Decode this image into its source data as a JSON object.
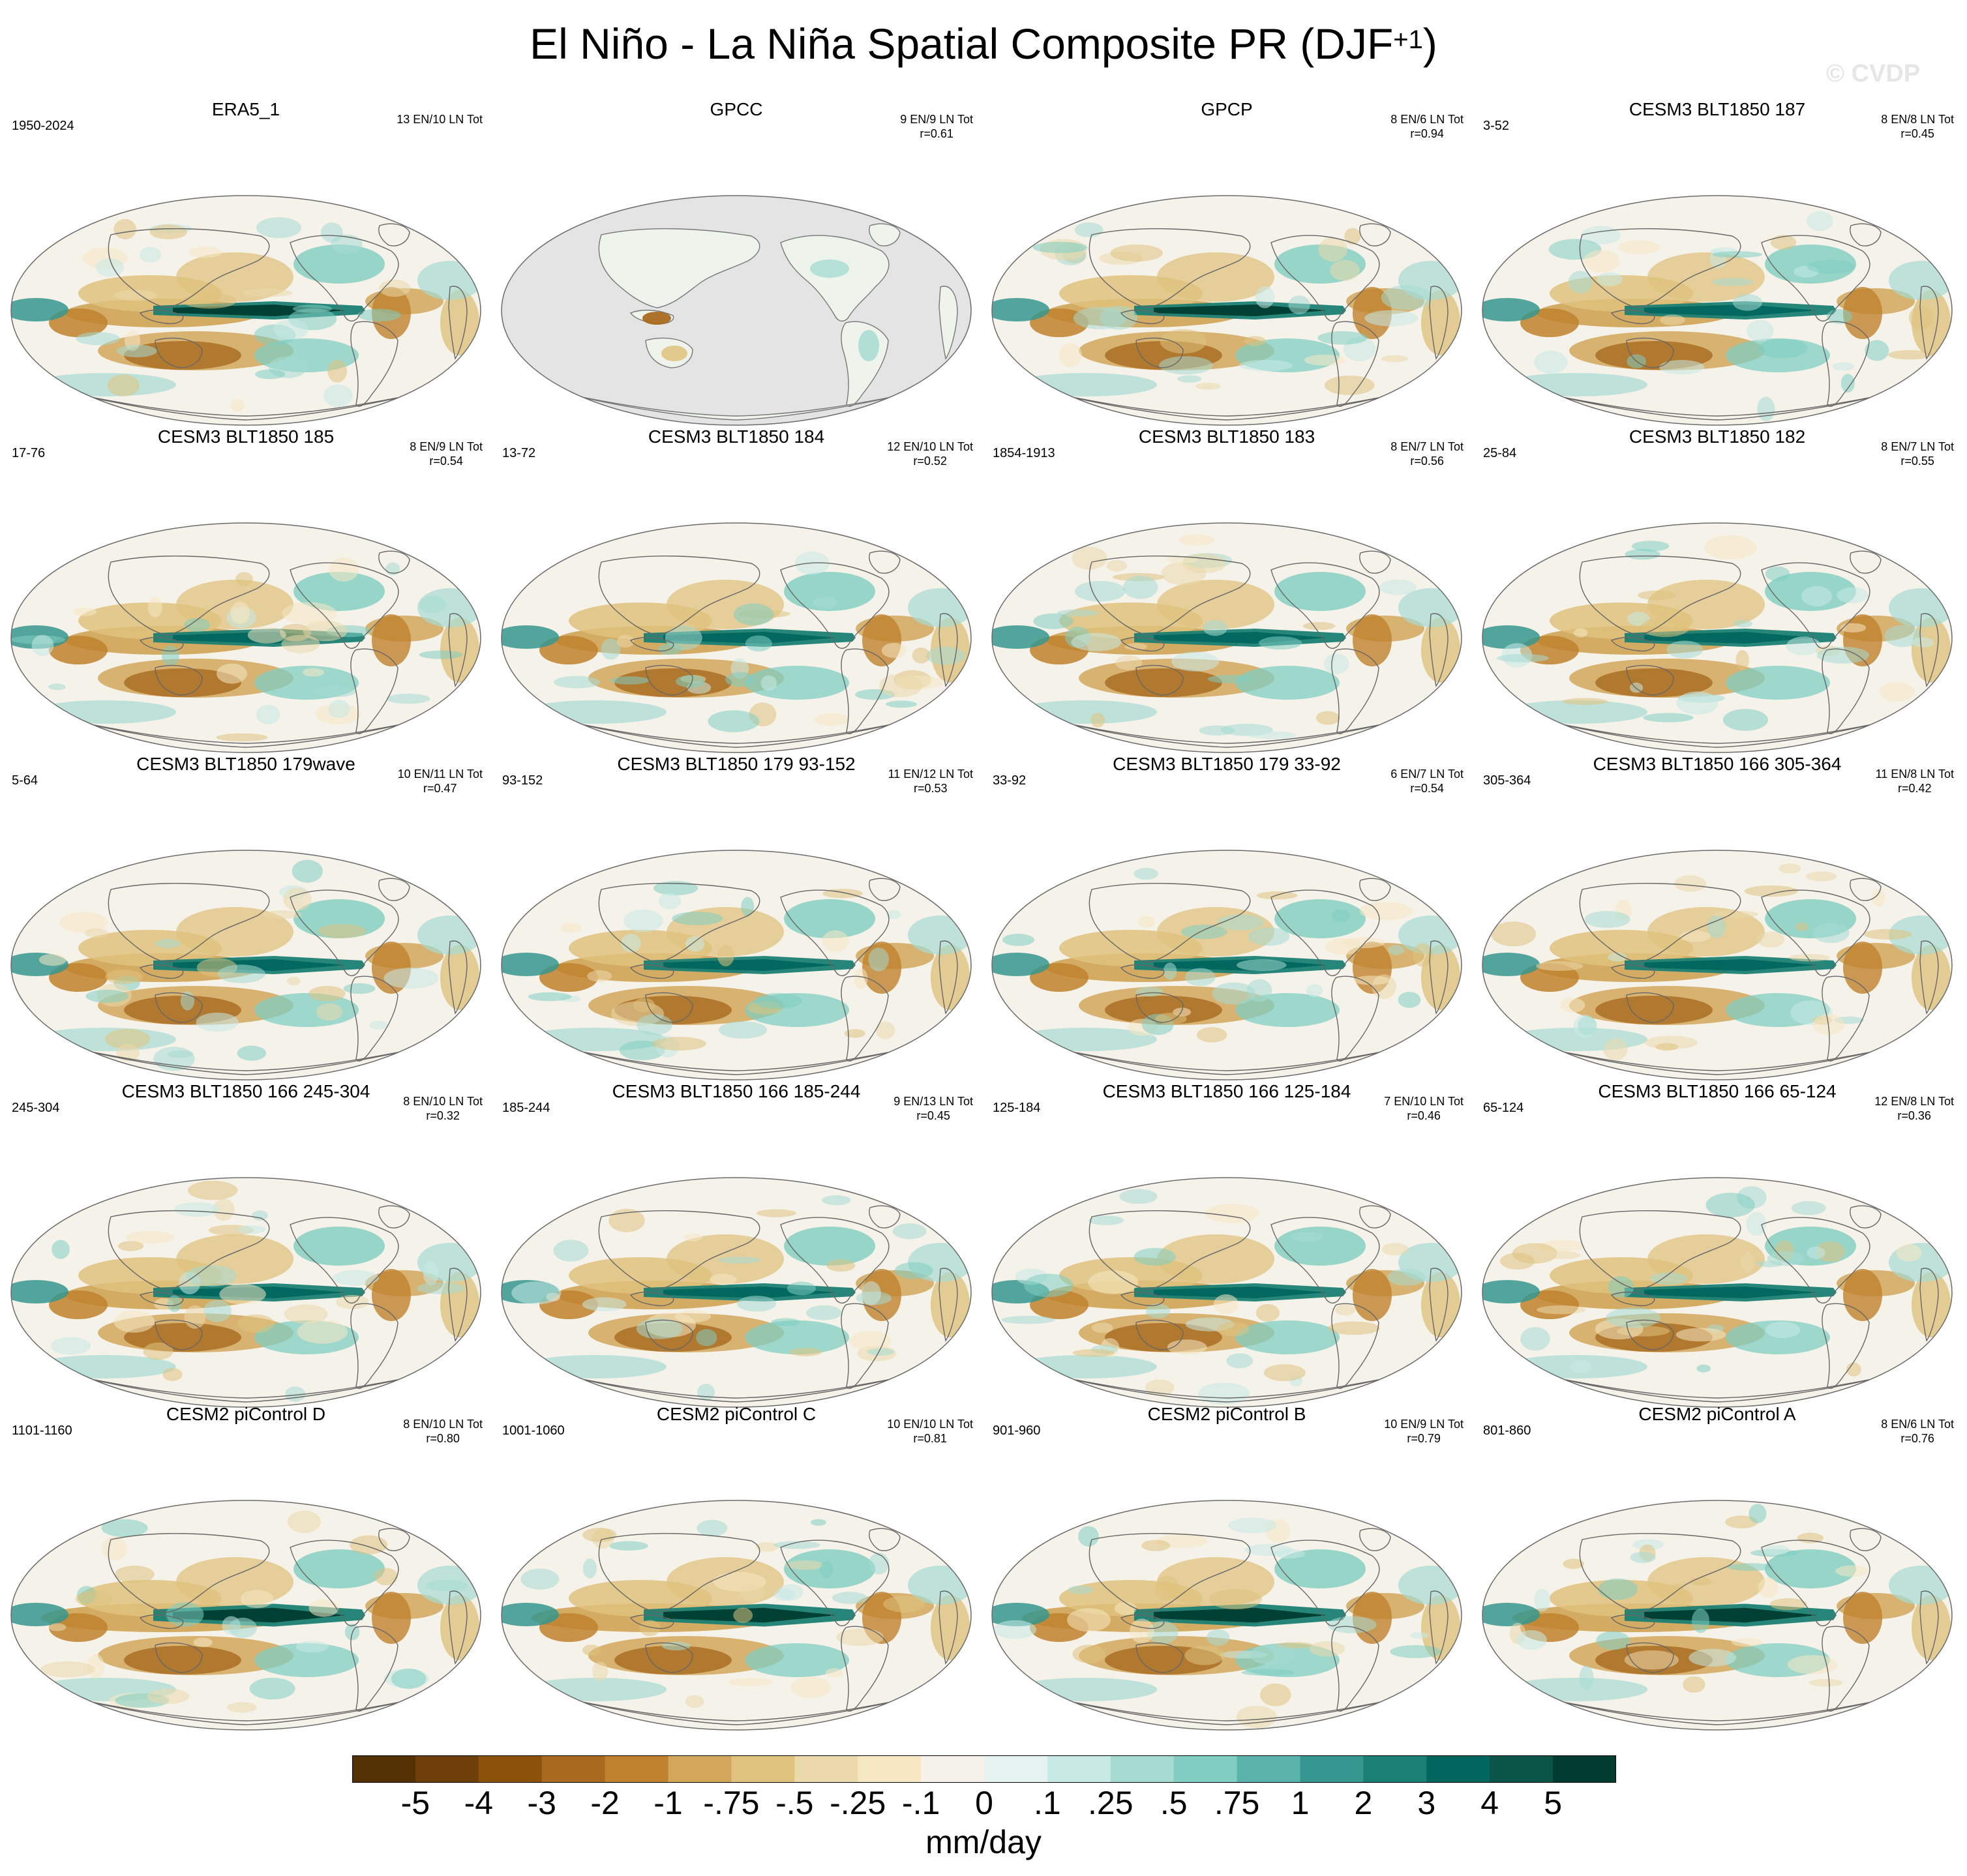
{
  "header": {
    "title": "El Niño - La Niña Spatial Composite PR (DJF",
    "title_sup": "+1",
    "title_close": ")",
    "watermark": "© CVDP"
  },
  "colorbar": {
    "colors": [
      "#543005",
      "#6f3f0a",
      "#8c510a",
      "#a86a1f",
      "#bf812d",
      "#d2a75c",
      "#dfc27d",
      "#ebd9ab",
      "#f6e8c3",
      "#f5f2ea",
      "#e6f3f1",
      "#c7eae5",
      "#a6dbd2",
      "#80cdc1",
      "#5ab4ac",
      "#35978f",
      "#1a7f74",
      "#01665e",
      "#0b5548",
      "#003c30"
    ],
    "tick_labels": [
      "-5",
      "-4",
      "-3",
      "-2",
      "-1",
      "-.75",
      "-.5",
      "-.25",
      "-.1",
      "0",
      ".1",
      ".25",
      ".5",
      ".75",
      "1",
      "2",
      "3",
      "4",
      "5"
    ],
    "units": "mm/day"
  },
  "panels": [
    {
      "title": "ERA5_1",
      "years": "1950-2024",
      "counts": "13 EN/10 LN Tot",
      "r": "",
      "style": "obs"
    },
    {
      "title": "GPCC",
      "years": "",
      "counts": "9 EN/9 LN Tot",
      "r": "r=0.61",
      "style": "land"
    },
    {
      "title": "GPCP",
      "years": "",
      "counts": "8 EN/6 LN Tot",
      "r": "r=0.94",
      "style": "obs"
    },
    {
      "title": "CESM3 BLT1850 187",
      "years": "3-52",
      "counts": "8 EN/8 LN Tot",
      "r": "r=0.45",
      "style": "model"
    },
    {
      "title": "CESM3 BLT1850 185",
      "years": "17-76",
      "counts": "8 EN/9 LN Tot",
      "r": "r=0.54",
      "style": "model"
    },
    {
      "title": "CESM3 BLT1850 184",
      "years": "13-72",
      "counts": "12 EN/10 LN Tot",
      "r": "r=0.52",
      "style": "model"
    },
    {
      "title": "CESM3 BLT1850 183",
      "years": "1854-1913",
      "counts": "8 EN/7 LN Tot",
      "r": "r=0.56",
      "style": "model"
    },
    {
      "title": "CESM3 BLT1850 182",
      "years": "25-84",
      "counts": "8 EN/7 LN Tot",
      "r": "r=0.55",
      "style": "model"
    },
    {
      "title": "CESM3 BLT1850 179wave",
      "years": "5-64",
      "counts": "10 EN/11 LN Tot",
      "r": "r=0.47",
      "style": "model"
    },
    {
      "title": "CESM3 BLT1850 179 93-152",
      "years": "93-152",
      "counts": "11 EN/12 LN Tot",
      "r": "r=0.53",
      "style": "model"
    },
    {
      "title": "CESM3 BLT1850 179 33-92",
      "years": "33-92",
      "counts": "6 EN/7 LN Tot",
      "r": "r=0.54",
      "style": "model"
    },
    {
      "title": "CESM3 BLT1850 166 305-364",
      "years": "305-364",
      "counts": "11 EN/8 LN Tot",
      "r": "r=0.42",
      "style": "model"
    },
    {
      "title": "CESM3 BLT1850 166 245-304",
      "years": "245-304",
      "counts": "8 EN/10 LN Tot",
      "r": "r=0.32",
      "style": "model"
    },
    {
      "title": "CESM3 BLT1850 166 185-244",
      "years": "185-244",
      "counts": "9 EN/13 LN Tot",
      "r": "r=0.45",
      "style": "model"
    },
    {
      "title": "CESM3 BLT1850 166 125-184",
      "years": "125-184",
      "counts": "7 EN/10 LN Tot",
      "r": "r=0.46",
      "style": "model"
    },
    {
      "title": "CESM3 BLT1850 166 65-124",
      "years": "65-124",
      "counts": "12 EN/8 LN Tot",
      "r": "r=0.36",
      "style": "model"
    },
    {
      "title": "CESM2 piControl D",
      "years": "1101-1160",
      "counts": "8 EN/10 LN Tot",
      "r": "r=0.80",
      "style": "strong"
    },
    {
      "title": "CESM2 piControl C",
      "years": "1001-1060",
      "counts": "10 EN/10 LN Tot",
      "r": "r=0.81",
      "style": "strong"
    },
    {
      "title": "CESM2 piControl B",
      "years": "901-960",
      "counts": "10 EN/9 LN Tot",
      "r": "r=0.79",
      "style": "strong"
    },
    {
      "title": "CESM2 piControl A",
      "years": "801-860",
      "counts": "8 EN/6 LN Tot",
      "r": "r=0.76",
      "style": "strong"
    }
  ]
}
